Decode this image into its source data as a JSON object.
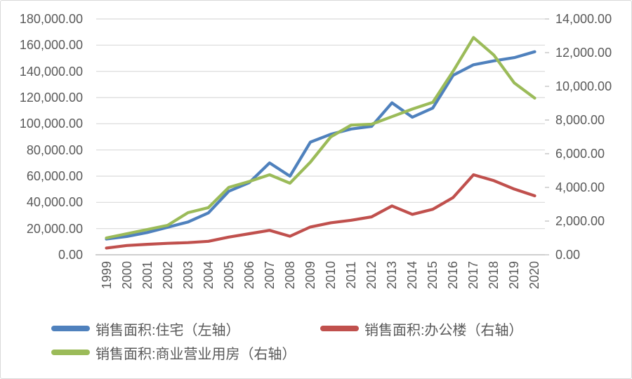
{
  "chart_data": {
    "type": "line",
    "title": "",
    "x": [
      "1999",
      "2000",
      "2001",
      "2002",
      "2003",
      "2004",
      "2005",
      "2006",
      "2007",
      "2008",
      "2009",
      "2010",
      "2011",
      "2012",
      "2013",
      "2014",
      "2015",
      "2016",
      "2017",
      "2018",
      "2019",
      "2020"
    ],
    "series": [
      {
        "name": "销售面积:住宅（左轴）",
        "axis": "left",
        "color": "#4F81BD",
        "values": [
          12000,
          14000,
          17000,
          21000,
          25000,
          32000,
          48500,
          55000,
          70100,
          60000,
          86000,
          92000,
          96000,
          98000,
          116000,
          105000,
          112000,
          137000,
          145000,
          148000,
          150500,
          155000
        ]
      },
      {
        "name": "销售面积:办公楼（右轴）",
        "axis": "right",
        "color": "#C0504D",
        "values": [
          400,
          550,
          620,
          680,
          720,
          800,
          1050,
          1250,
          1450,
          1100,
          1650,
          1900,
          2050,
          2250,
          2900,
          2400,
          2700,
          3400,
          4750,
          4400,
          3900,
          3500
        ]
      },
      {
        "name": "销售面积:商业营业用房（右轴）",
        "axis": "right",
        "color": "#9BBB59",
        "values": [
          1000,
          1250,
          1500,
          1750,
          2500,
          2800,
          4000,
          4350,
          4750,
          4250,
          5500,
          7000,
          7700,
          7750,
          8200,
          8650,
          9050,
          10900,
          12900,
          11850,
          10200,
          9300
        ]
      }
    ],
    "left_axis": {
      "min": 0,
      "max": 180000,
      "step": 20000,
      "tick_labels": [
        "0.00",
        "20,000.00",
        "40,000.00",
        "60,000.00",
        "80,000.00",
        "100,000.00",
        "120,000.00",
        "140,000.00",
        "160,000.00",
        "180,000.00"
      ]
    },
    "right_axis": {
      "min": 0,
      "max": 14000,
      "step": 2000,
      "tick_labels": [
        "0.00",
        "2,000.00",
        "4,000.00",
        "6,000.00",
        "8,000.00",
        "10,000.00",
        "12,000.00",
        "14,000.00"
      ]
    },
    "grid": true,
    "legend_position": "bottom"
  },
  "colors": {
    "gridline": "#D9D9D9",
    "axis_line": "#BFBFBF",
    "text": "#595959",
    "background": "#FFFFFF",
    "border": "#D9D9D9"
  }
}
